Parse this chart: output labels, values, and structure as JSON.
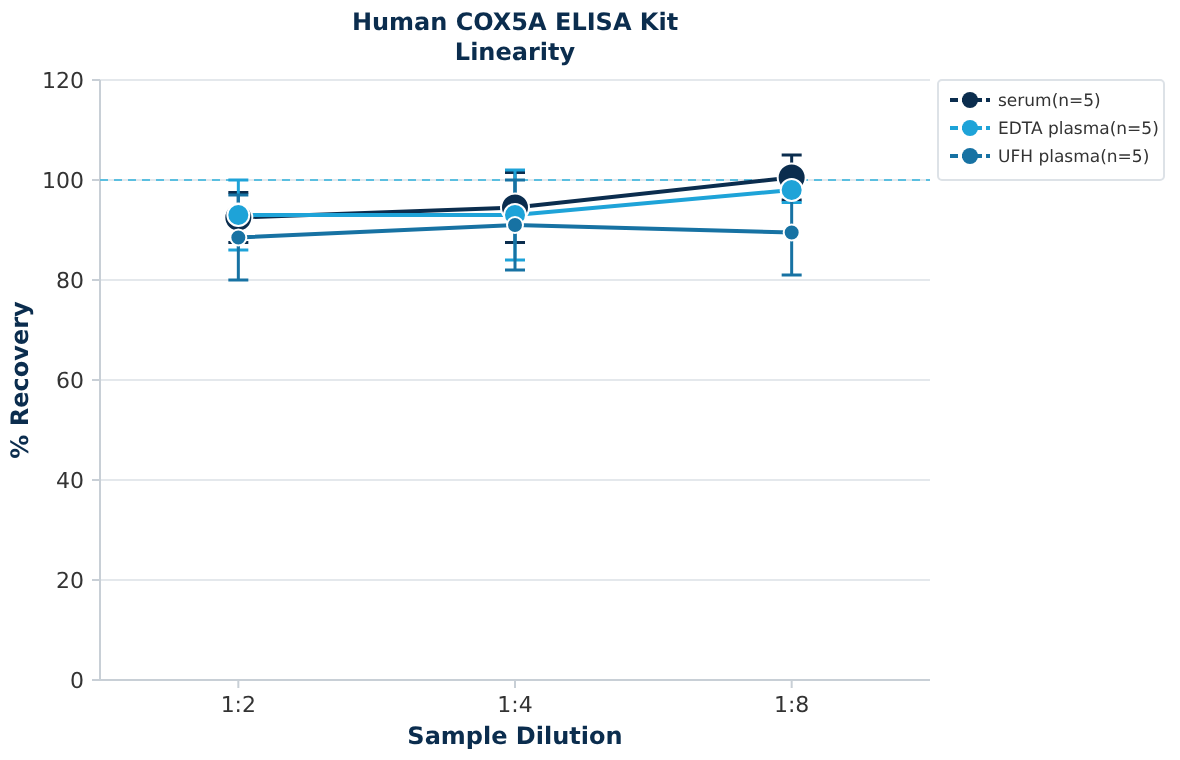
{
  "chart_data": {
    "type": "line",
    "title": "Human COX5A ELISA Kit",
    "subtitle": "Linearity",
    "xlabel": "Sample Dilution",
    "ylabel": "% Recovery",
    "categories": [
      "1:2",
      "1:4",
      "1:8"
    ],
    "series": [
      {
        "name": "serum(n=5)",
        "color": "#0b2d4e",
        "values": [
          92.5,
          94.5,
          100.5
        ],
        "errors": [
          5,
          7,
          4.5
        ]
      },
      {
        "name": "EDTA plasma(n=5)",
        "color": "#1ea3d8",
        "values": [
          93,
          93,
          98
        ],
        "errors": [
          7,
          9,
          2.5
        ]
      },
      {
        "name": "UFH plasma(n=5)",
        "color": "#1772a3",
        "values": [
          88.5,
          91,
          89.5
        ],
        "errors": [
          8.5,
          9,
          8.5
        ]
      }
    ],
    "ylim": [
      0,
      120
    ],
    "yticks": [
      0,
      20,
      40,
      60,
      80,
      100,
      120
    ],
    "grid": "y",
    "legend": "top right",
    "marker": "circle",
    "line_style": "solid",
    "ref_lines": [
      {
        "axis": "y",
        "value": 100,
        "color": "#5bbfe0",
        "line_style": "dashed"
      }
    ]
  }
}
